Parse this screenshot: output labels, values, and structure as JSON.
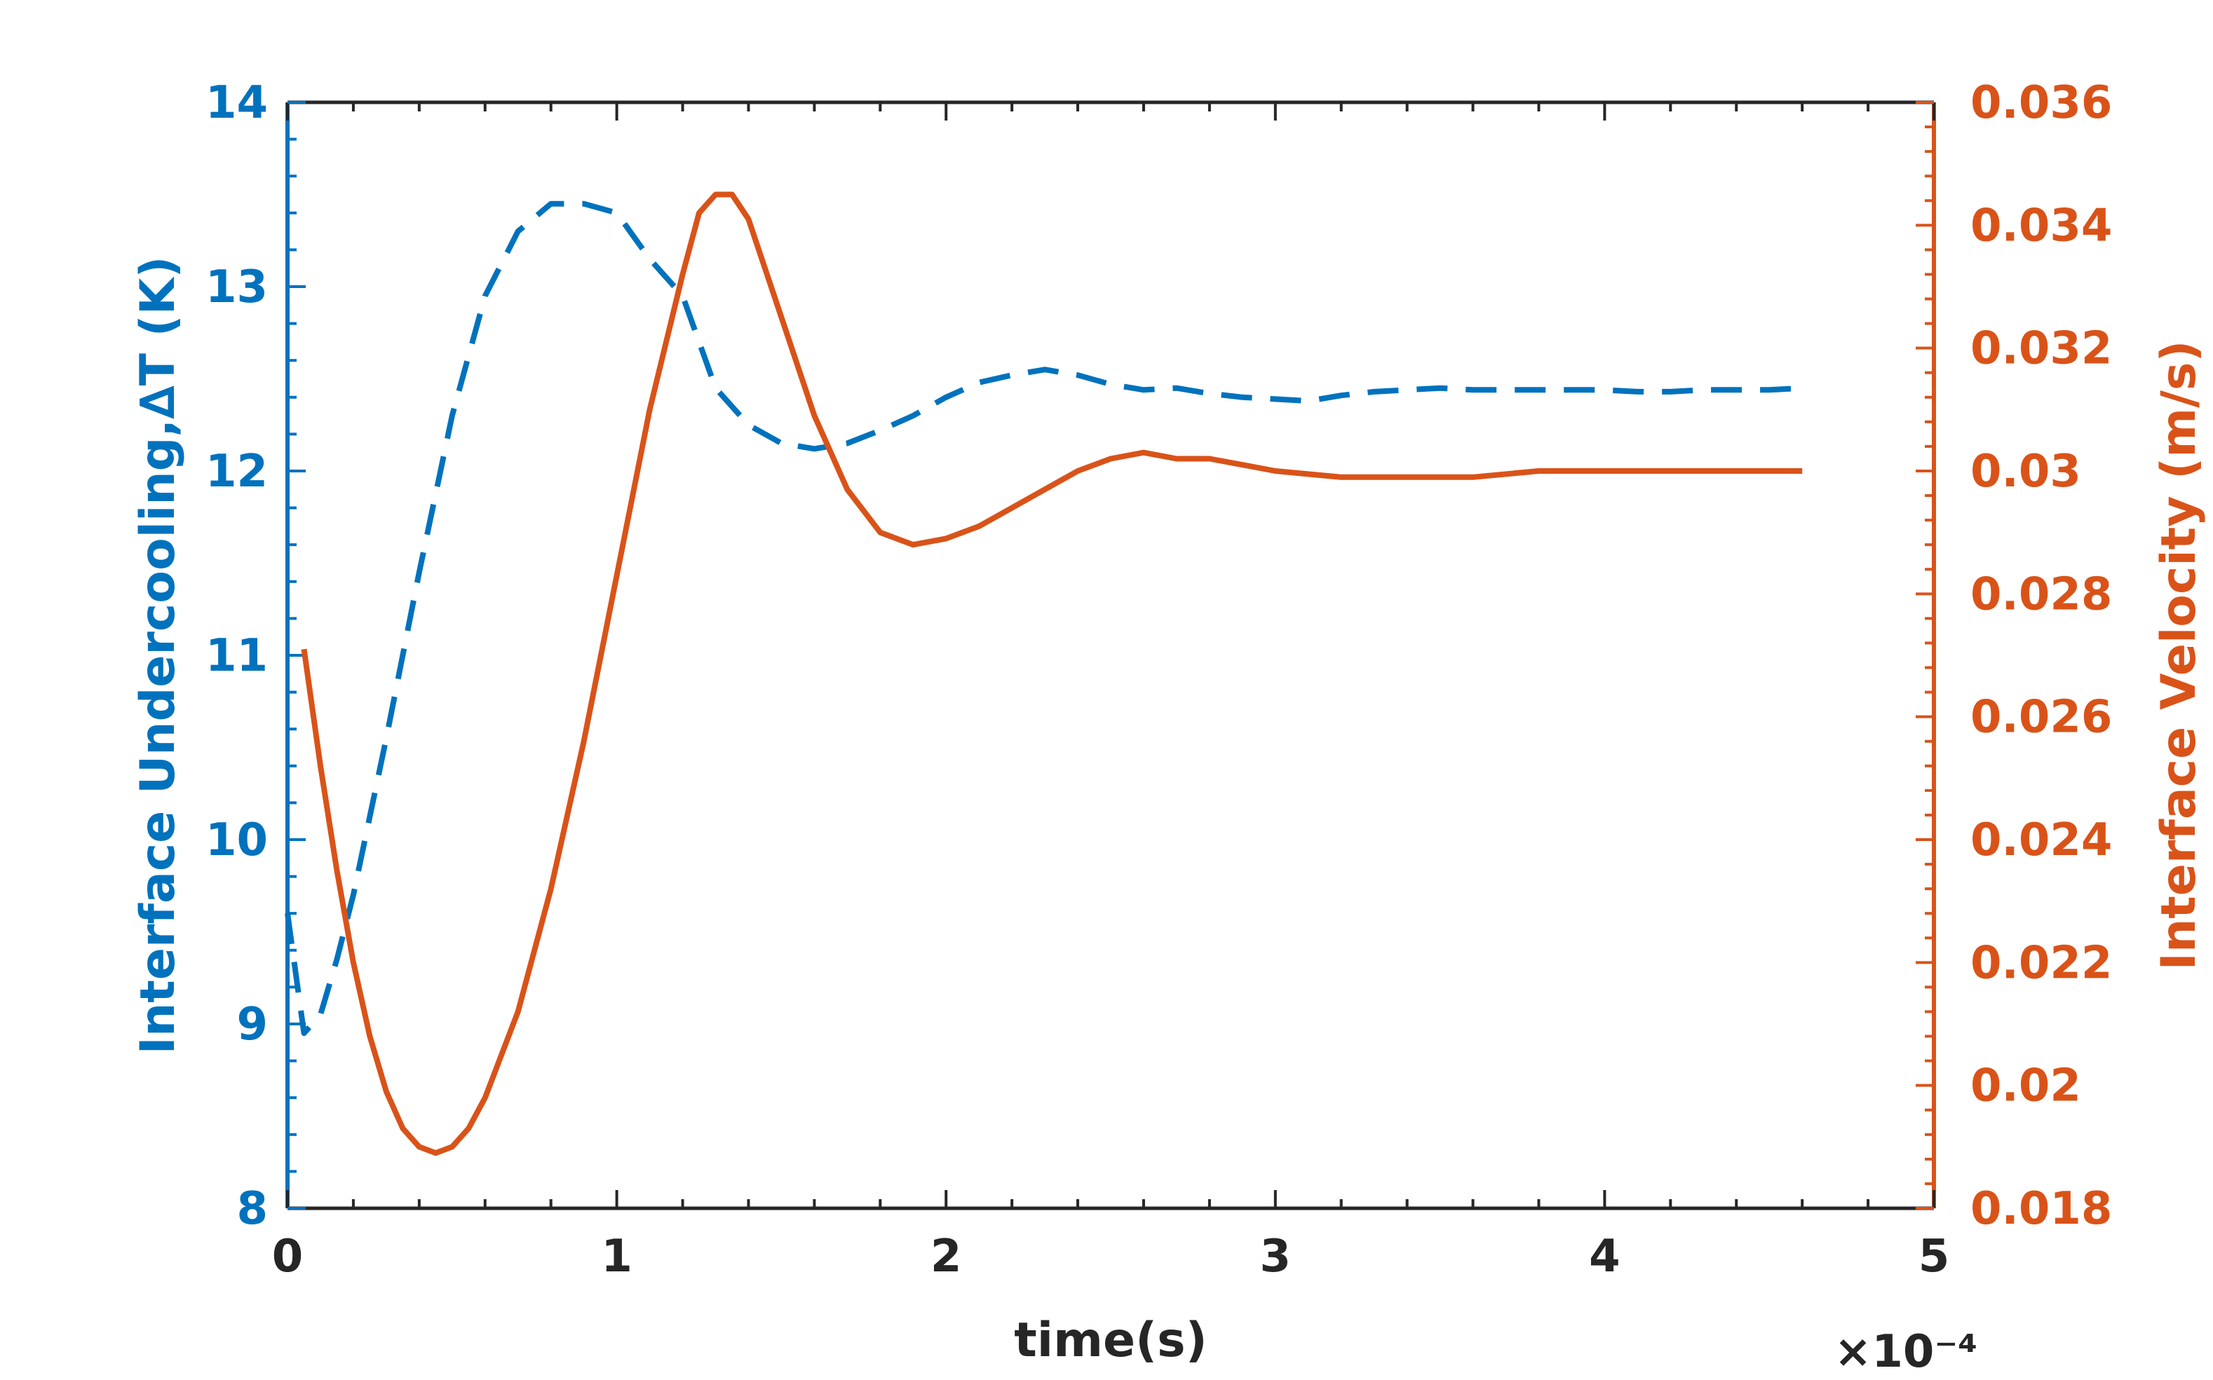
{
  "chart_data": {
    "type": "line",
    "xlabel": "time(s)",
    "x_exponent_label": "×10⁻⁴",
    "xlim": [
      0,
      5
    ],
    "x_ticks": [
      "0",
      "1",
      "2",
      "3",
      "4",
      "5"
    ],
    "y_left": {
      "label": "Interface Undercooling,∆T (K)",
      "lim": [
        8,
        14
      ],
      "ticks": [
        "8",
        "9",
        "10",
        "11",
        "12",
        "13",
        "14"
      ],
      "color": "#0072BD"
    },
    "y_right": {
      "label": "Interface Velocity (m/s)",
      "lim": [
        0.018,
        0.036
      ],
      "ticks": [
        "0.018",
        "0.02",
        "0.022",
        "0.024",
        "0.026",
        "0.028",
        "0.03",
        "0.032",
        "0.034",
        "0.036"
      ],
      "color": "#D95319"
    },
    "grid": false,
    "legend": "none",
    "series": [
      {
        "axis": "left",
        "style": "dashed",
        "color": "#0072BD",
        "x": [
          0.0,
          0.05,
          0.1,
          0.15,
          0.2,
          0.3,
          0.4,
          0.5,
          0.6,
          0.7,
          0.8,
          0.9,
          1.0,
          1.1,
          1.2,
          1.3,
          1.4,
          1.5,
          1.6,
          1.7,
          1.8,
          1.9,
          2.0,
          2.1,
          2.2,
          2.3,
          2.4,
          2.5,
          2.6,
          2.7,
          2.8,
          2.9,
          3.0,
          3.1,
          3.2,
          3.3,
          3.4,
          3.5,
          3.6,
          3.7,
          3.8,
          3.9,
          4.0,
          4.1,
          4.2,
          4.3,
          4.4,
          4.5,
          4.6
        ],
        "values": [
          9.6,
          8.95,
          9.05,
          9.35,
          9.7,
          10.55,
          11.45,
          12.3,
          12.95,
          13.3,
          13.45,
          13.45,
          13.4,
          13.15,
          12.95,
          12.45,
          12.25,
          12.15,
          12.12,
          12.15,
          12.22,
          12.3,
          12.4,
          12.48,
          12.52,
          12.55,
          12.52,
          12.47,
          12.44,
          12.45,
          12.42,
          12.4,
          12.39,
          12.38,
          12.41,
          12.43,
          12.44,
          12.45,
          12.44,
          12.44,
          12.44,
          12.44,
          12.44,
          12.43,
          12.43,
          12.44,
          12.44,
          12.44,
          12.45
        ]
      },
      {
        "axis": "right",
        "style": "solid",
        "color": "#D95319",
        "x": [
          0.05,
          0.1,
          0.15,
          0.2,
          0.25,
          0.3,
          0.35,
          0.4,
          0.45,
          0.5,
          0.55,
          0.6,
          0.7,
          0.8,
          0.9,
          1.0,
          1.1,
          1.2,
          1.25,
          1.3,
          1.35,
          1.4,
          1.5,
          1.6,
          1.7,
          1.8,
          1.9,
          2.0,
          2.1,
          2.2,
          2.3,
          2.4,
          2.5,
          2.6,
          2.7,
          2.8,
          2.9,
          3.0,
          3.2,
          3.4,
          3.6,
          3.8,
          4.0,
          4.2,
          4.4,
          4.6
        ],
        "values": [
          0.0271,
          0.0252,
          0.0235,
          0.022,
          0.0208,
          0.0199,
          0.0193,
          0.019,
          0.0189,
          0.019,
          0.0193,
          0.0198,
          0.0212,
          0.0232,
          0.0256,
          0.0283,
          0.031,
          0.0332,
          0.0342,
          0.0345,
          0.0345,
          0.0341,
          0.0325,
          0.0309,
          0.0297,
          0.029,
          0.0288,
          0.0289,
          0.0291,
          0.0294,
          0.0297,
          0.03,
          0.0302,
          0.0303,
          0.0302,
          0.0302,
          0.0301,
          0.03,
          0.0299,
          0.0299,
          0.0299,
          0.03,
          0.03,
          0.03,
          0.03,
          0.03
        ]
      }
    ]
  }
}
